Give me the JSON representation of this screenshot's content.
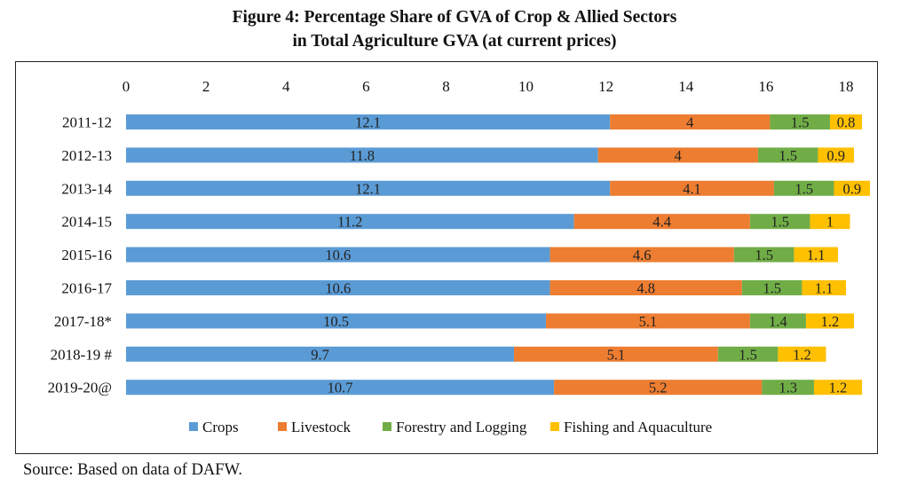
{
  "title": {
    "line1": "Figure 4: Percentage Share of GVA of Crop & Allied Sectors",
    "line2": "in Total Agriculture GVA (at current prices)"
  },
  "source": "Source: Based on data of DAFW.",
  "colors": {
    "crops": "#5b9bd5",
    "livestock": "#ed7d31",
    "forestry": "#70ad47",
    "fishing": "#ffc000"
  },
  "chart_data": {
    "type": "bar",
    "orientation": "horizontal",
    "stacked": true,
    "title": "Figure 4: Percentage Share of GVA of Crop & Allied Sectors in Total Agriculture GVA (at current prices)",
    "categories": [
      "2011-12",
      "2012-13",
      "2013-14",
      "2014-15",
      "2015-16",
      "2016-17",
      "2017-18*",
      "2018-19 #",
      "2019-20@"
    ],
    "series": [
      {
        "name": "Crops",
        "color": "#5b9bd5",
        "values": [
          12.1,
          11.8,
          12.1,
          11.2,
          10.6,
          10.6,
          10.5,
          9.7,
          10.7
        ]
      },
      {
        "name": "Livestock",
        "color": "#ed7d31",
        "values": [
          4,
          4,
          4.1,
          4.4,
          4.6,
          4.8,
          5.1,
          5.1,
          5.2
        ]
      },
      {
        "name": "Forestry and Logging",
        "color": "#70ad47",
        "values": [
          1.5,
          1.5,
          1.5,
          1.5,
          1.5,
          1.5,
          1.4,
          1.5,
          1.3
        ]
      },
      {
        "name": "Fishing and Aquaculture",
        "color": "#ffc000",
        "values": [
          0.8,
          0.9,
          0.9,
          1,
          1.1,
          1.1,
          1.2,
          1.2,
          1.2
        ]
      }
    ],
    "xlim": [
      0,
      18
    ],
    "xticks": [
      0,
      2,
      4,
      6,
      8,
      10,
      12,
      14,
      16,
      18
    ],
    "xaxis_position": "top",
    "legend_position": "bottom",
    "grid": false
  }
}
